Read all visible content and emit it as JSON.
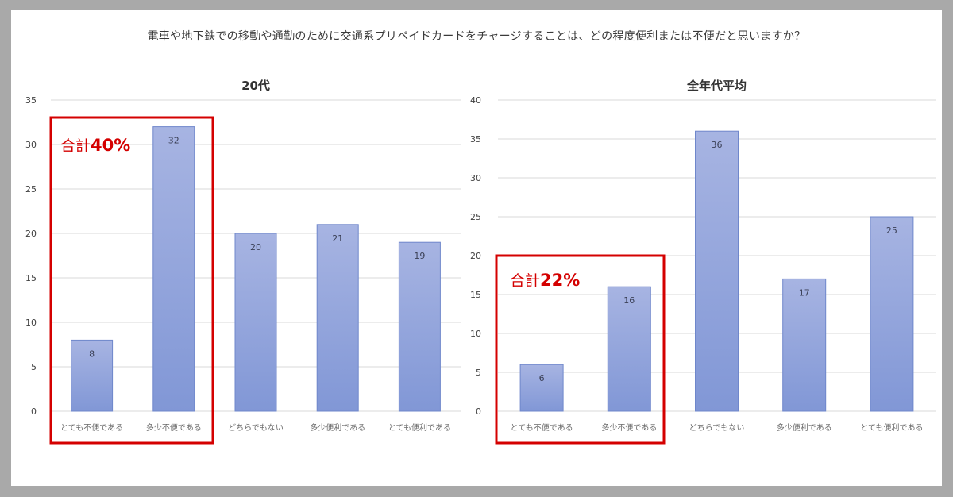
{
  "question": "電車や地下鉄での移動や通勤のために交通系プリペイドカードをチャージすることは、どの程度便利または不便だと思いますか？",
  "colors": {
    "bar_top": "#a7b4e2",
    "bar_bottom": "#8197d6",
    "bar_stroke": "#6f87cb",
    "highlight": "#d40000",
    "grid": "#d9d9d9",
    "tick_text": "#404040",
    "label_text": "#6b6b6b"
  },
  "chart_data": [
    {
      "type": "bar",
      "title": "20代",
      "categories": [
        "とても不便である",
        "多少不便である",
        "どちらでもない",
        "多少便利である",
        "とても便利である"
      ],
      "values": [
        8,
        32,
        20,
        21,
        19
      ],
      "ylim": [
        0,
        35
      ],
      "yticks": [
        0,
        5,
        10,
        15,
        20,
        25,
        30,
        35
      ],
      "grid": true,
      "highlight": {
        "label": "合計",
        "value": "40%",
        "categories": [
          0,
          1
        ]
      }
    },
    {
      "type": "bar",
      "title": "全年代平均",
      "categories": [
        "とても不便である",
        "多少不便である",
        "どちらでもない",
        "多少便利である",
        "とても便利である"
      ],
      "values": [
        6,
        16,
        36,
        17,
        25
      ],
      "ylim": [
        0,
        40
      ],
      "yticks": [
        0,
        5,
        10,
        15,
        20,
        25,
        30,
        35,
        40
      ],
      "grid": true,
      "highlight": {
        "label": "合計",
        "value": "22%",
        "categories": [
          0,
          1
        ]
      }
    }
  ]
}
